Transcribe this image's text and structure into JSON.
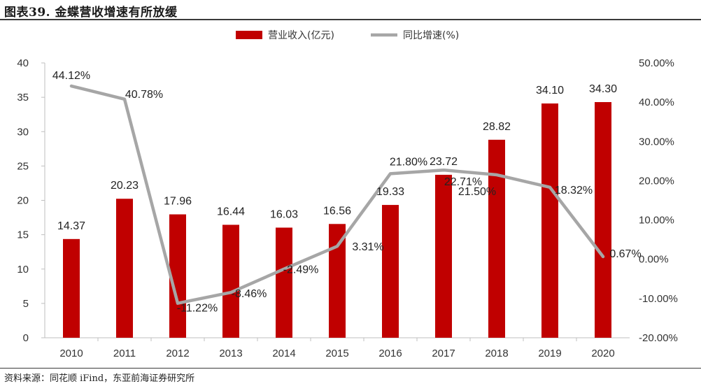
{
  "page": {
    "title": "图表39. 金蝶营收增速有所放缓",
    "source": "资料来源：同花顺 iFind，东亚前海证券研究所"
  },
  "chart_data": {
    "type": "bar",
    "categories": [
      "2010",
      "2011",
      "2012",
      "2013",
      "2014",
      "2015",
      "2016",
      "2017",
      "2018",
      "2019",
      "2020"
    ],
    "series": [
      {
        "name": "营业收入(亿元)",
        "type": "bar",
        "axis": "left",
        "color": "#c00000",
        "values": [
          14.37,
          20.23,
          17.96,
          16.44,
          16.03,
          16.56,
          19.33,
          23.72,
          28.82,
          34.1,
          34.3
        ],
        "labels": [
          "14.37",
          "20.23",
          "17.96",
          "16.44",
          "16.03",
          "16.56",
          "19.33",
          "23.72",
          "28.82",
          "34.10",
          "34.30"
        ]
      },
      {
        "name": "同比增速(%)",
        "type": "line",
        "axis": "right",
        "color": "#a6a6a6",
        "values": [
          44.12,
          40.78,
          -11.22,
          -8.46,
          -2.49,
          3.31,
          21.8,
          22.71,
          21.5,
          18.32,
          0.67
        ],
        "labels": [
          "44.12%",
          "40.78%",
          "-11.22%",
          "-8.46%",
          "-2.49%",
          "3.31%",
          "21.80%",
          "22.71%",
          "21.50%",
          "18.32%",
          "0.67%"
        ]
      }
    ],
    "y_left": {
      "ylim": [
        0,
        40
      ],
      "ticks": [
        "0",
        "5",
        "10",
        "15",
        "20",
        "25",
        "30",
        "35",
        "40"
      ]
    },
    "y_right": {
      "ylim": [
        -20,
        50
      ],
      "ticks": [
        "-20.00%",
        "-10.00%",
        "0.00%",
        "10.00%",
        "20.00%",
        "30.00%",
        "40.00%",
        "50.00%"
      ]
    },
    "legend_position": "top-center",
    "grid": false
  }
}
